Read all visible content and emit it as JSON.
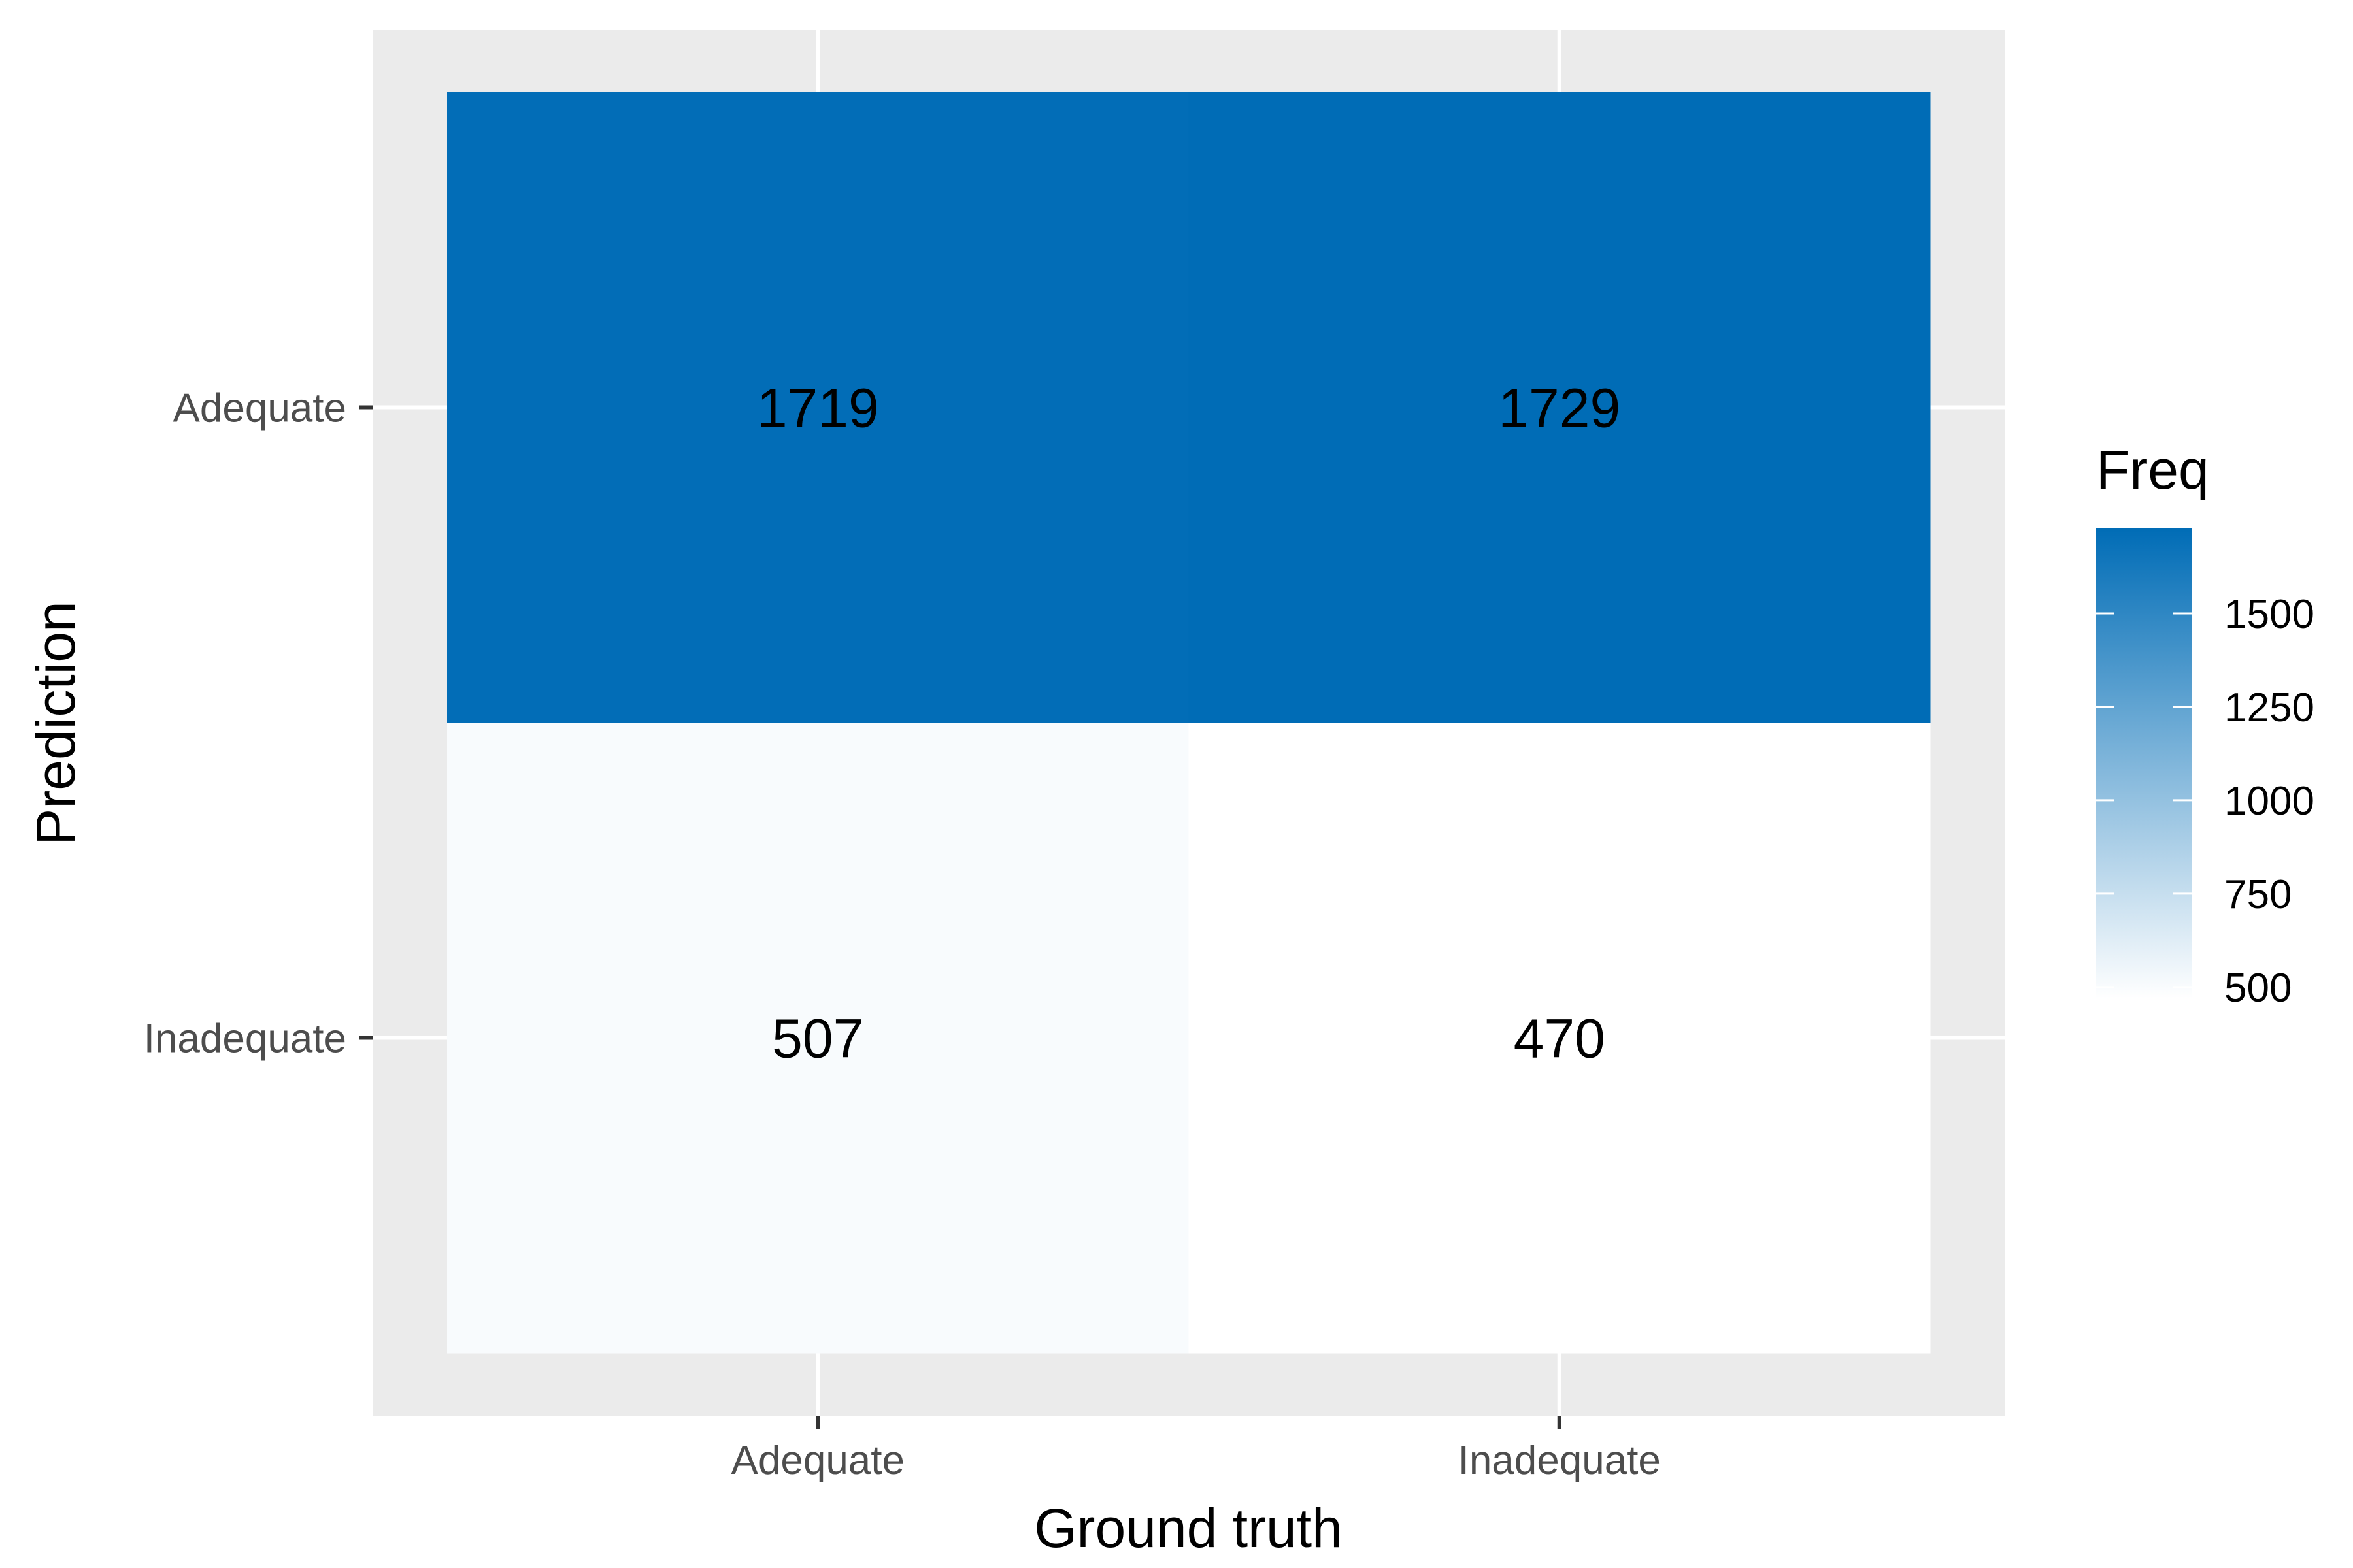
{
  "chart_data": {
    "type": "heatmap",
    "xlabel": "Ground truth",
    "ylabel": "Prediction",
    "x_categories": [
      "Adequate",
      "Inadequate"
    ],
    "y_categories": [
      "Adequate",
      "Inadequate"
    ],
    "cells": [
      {
        "x": "Adequate",
        "y": "Adequate",
        "value": 1719
      },
      {
        "x": "Inadequate",
        "y": "Adequate",
        "value": 1729
      },
      {
        "x": "Adequate",
        "y": "Inadequate",
        "value": 507
      },
      {
        "x": "Inadequate",
        "y": "Inadequate",
        "value": 470
      }
    ],
    "legend": {
      "title": "Freq",
      "ticks": [
        500,
        750,
        1000,
        1250,
        1500
      ],
      "tick_labels": [
        "500",
        "750",
        "1000",
        "1250",
        "1500"
      ],
      "min": 470,
      "max": 1729,
      "low_color": "#ffffff",
      "high_color": "#006cb6",
      "placement": "right"
    },
    "panel_background": "#ebebeb",
    "grid": true
  }
}
